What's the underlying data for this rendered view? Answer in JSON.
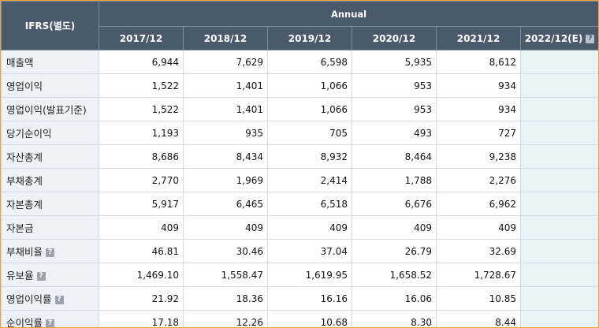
{
  "header": {
    "corner_label": "IFRS(별도)",
    "group_label": "Annual",
    "columns": [
      "2017/12",
      "2018/12",
      "2019/12",
      "2020/12",
      "2021/12",
      "2022/12(E)"
    ]
  },
  "icons": {
    "help": "help-icon",
    "help_glyph": "?"
  },
  "colors": {
    "header_bg": "#4a5a6c",
    "label_bg": "#eef1f7",
    "estimate_bg": "#e6f4f8",
    "frame_border": "#e9a33a"
  },
  "rows": [
    {
      "label": "매출액",
      "has_help": false,
      "values": [
        "6,944",
        "7,629",
        "6,598",
        "5,935",
        "8,612",
        ""
      ]
    },
    {
      "label": "영업이익",
      "has_help": false,
      "values": [
        "1,522",
        "1,401",
        "1,066",
        "953",
        "934",
        ""
      ]
    },
    {
      "label": "영업이익(발표기준)",
      "has_help": false,
      "values": [
        "1,522",
        "1,401",
        "1,066",
        "953",
        "934",
        ""
      ]
    },
    {
      "label": "당기순이익",
      "has_help": false,
      "values": [
        "1,193",
        "935",
        "705",
        "493",
        "727",
        ""
      ]
    },
    {
      "label": "자산총계",
      "has_help": false,
      "values": [
        "8,686",
        "8,434",
        "8,932",
        "8,464",
        "9,238",
        ""
      ]
    },
    {
      "label": "부채총계",
      "has_help": false,
      "values": [
        "2,770",
        "1,969",
        "2,414",
        "1,788",
        "2,276",
        ""
      ]
    },
    {
      "label": "자본총계",
      "has_help": false,
      "values": [
        "5,917",
        "6,465",
        "6,518",
        "6,676",
        "6,962",
        ""
      ]
    },
    {
      "label": "자본금",
      "has_help": false,
      "values": [
        "409",
        "409",
        "409",
        "409",
        "409",
        ""
      ]
    },
    {
      "label": "부채비율",
      "has_help": true,
      "values": [
        "46.81",
        "30.46",
        "37.04",
        "26.79",
        "32.69",
        ""
      ]
    },
    {
      "label": "유보율",
      "has_help": true,
      "values": [
        "1,469.10",
        "1,558.47",
        "1,619.95",
        "1,658.52",
        "1,728.67",
        ""
      ]
    },
    {
      "label": "영업이익률",
      "has_help": true,
      "values": [
        "21.92",
        "18.36",
        "16.16",
        "16.06",
        "10.85",
        ""
      ]
    },
    {
      "label": "순이익률",
      "has_help": true,
      "values": [
        "17.18",
        "12.26",
        "10.68",
        "8.30",
        "8.44",
        ""
      ]
    }
  ]
}
